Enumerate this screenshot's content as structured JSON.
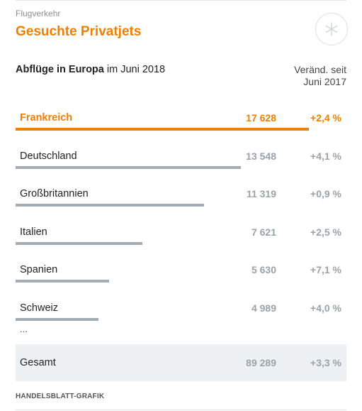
{
  "header": {
    "kicker": "Flugverkehr",
    "title": "Gesuchte Privatjets",
    "logo_icon": "asterisk-icon"
  },
  "subheading": {
    "bold": "Abflüge in Europa",
    "rest": " im Juni 2018",
    "column_line1": "Veränd. seit",
    "column_line2": "Juni 2017"
  },
  "chart_data": {
    "type": "bar",
    "orientation": "horizontal",
    "xlim": [
      0,
      20000
    ],
    "highlight_color": "#ee7f00",
    "bar_color": "#a3abb3",
    "rows": [
      {
        "label": "Frankreich",
        "value": 17628,
        "value_text": "17 628",
        "change": "+2,4 %",
        "highlight": true
      },
      {
        "label": "Deutschland",
        "value": 13548,
        "value_text": "13 548",
        "change": "+4,1 %",
        "highlight": false
      },
      {
        "label": "Großbritannien",
        "value": 11319,
        "value_text": "11 319",
        "change": "+0,9 %",
        "highlight": false
      },
      {
        "label": "Italien",
        "value": 7621,
        "value_text": "7 621",
        "change": "+2,5 %",
        "highlight": false
      },
      {
        "label": "Spanien",
        "value": 5630,
        "value_text": "5 630",
        "change": "+7,1 %",
        "highlight": false
      },
      {
        "label": "Schweiz",
        "value": 4989,
        "value_text": "4 989",
        "change": "+4,0 %",
        "highlight": false
      }
    ],
    "ellipsis": "...",
    "total": {
      "label": "Gesamt",
      "value_text": "89 289",
      "change": "+3,3 %"
    }
  },
  "footer": {
    "source": "HANDELSBLATT-GRAFIK"
  }
}
